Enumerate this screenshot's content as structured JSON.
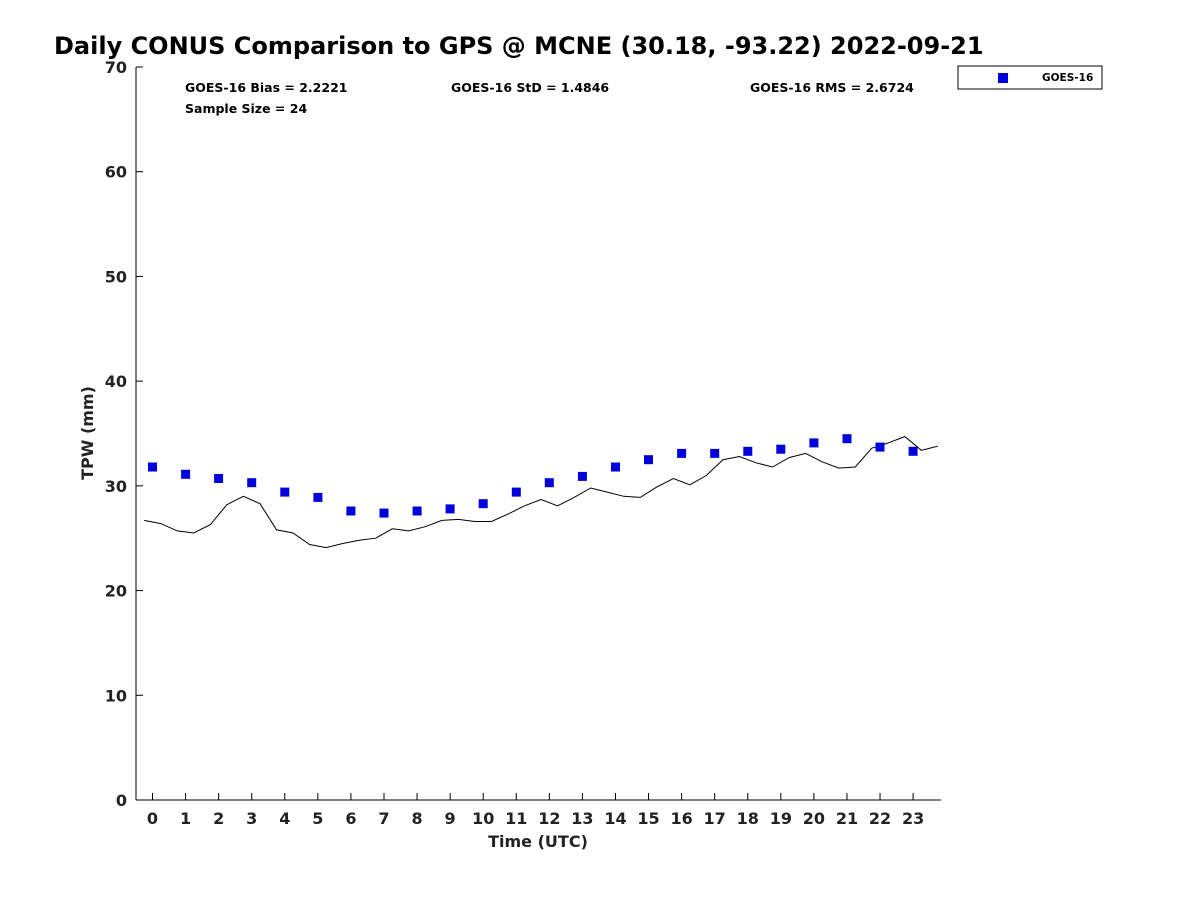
{
  "chart_data": {
    "type": "scatter",
    "title": "Daily CONUS Comparison to GPS @ MCNE (30.18, -93.22) 2022-09-21",
    "xlabel": "Time (UTC)",
    "ylabel": "TPW (mm)",
    "xlim": [
      -0.5,
      23.75
    ],
    "ylim": [
      0,
      70
    ],
    "xticks": [
      0,
      1,
      2,
      3,
      4,
      5,
      6,
      7,
      8,
      9,
      10,
      11,
      12,
      13,
      14,
      15,
      16,
      17,
      18,
      19,
      20,
      21,
      22,
      23
    ],
    "yticks": [
      0,
      10,
      20,
      30,
      40,
      50,
      60,
      70
    ],
    "grid": false,
    "legend": {
      "placement": "top-right, outside plot area",
      "entries": [
        "GOES-16"
      ]
    },
    "stats": {
      "bias": "GOES-16 Bias = 2.2221",
      "std": "GOES-16 StD = 1.4846",
      "rms": "GOES-16 RMS = 2.6724",
      "sample": "Sample Size = 24"
    },
    "series": [
      {
        "name": "GOES-16",
        "kind": "scatter",
        "marker": "square",
        "color": "#0000dd",
        "x": [
          0,
          1,
          2,
          3,
          4,
          5,
          6,
          7,
          8,
          9,
          10,
          11,
          12,
          13,
          14,
          15,
          16,
          17,
          18,
          19,
          20,
          21,
          22,
          23
        ],
        "y": [
          31.8,
          31.1,
          30.7,
          30.3,
          29.4,
          28.9,
          27.6,
          27.4,
          27.6,
          27.8,
          28.3,
          29.4,
          30.3,
          30.9,
          31.8,
          32.5,
          33.1,
          33.1,
          33.3,
          33.5,
          34.1,
          34.5,
          33.7,
          33.3
        ]
      },
      {
        "kind": "line",
        "color": "#000000",
        "x": [
          -0.25,
          0.25,
          0.75,
          1.25,
          1.75,
          2.25,
          2.75,
          3.25,
          3.75,
          4.25,
          4.75,
          5.25,
          5.75,
          6.25,
          6.75,
          7.25,
          7.75,
          8.25,
          8.75,
          9.25,
          9.75,
          10.25,
          10.75,
          11.25,
          11.75,
          12.25,
          12.75,
          13.25,
          13.75,
          14.25,
          14.75,
          15.25,
          15.75,
          16.25,
          16.75,
          17.25,
          17.75,
          18.25,
          18.75,
          19.25,
          19.75,
          20.25,
          20.75,
          21.25,
          21.75,
          22.25,
          22.75,
          23.25,
          23.75
        ],
        "y": [
          26.7,
          26.4,
          25.7,
          25.5,
          26.3,
          28.2,
          29.0,
          28.3,
          25.8,
          25.5,
          24.4,
          24.1,
          24.5,
          24.8,
          25.0,
          25.9,
          25.7,
          26.1,
          26.7,
          26.8,
          26.6,
          26.6,
          27.3,
          28.1,
          28.7,
          28.1,
          28.9,
          29.8,
          29.4,
          29.0,
          28.9,
          29.9,
          30.7,
          30.1,
          31.0,
          32.5,
          32.8,
          32.2,
          31.8,
          32.7,
          33.1,
          32.3,
          31.7,
          31.8,
          33.6,
          34.1,
          34.7,
          33.4,
          33.8
        ]
      }
    ]
  }
}
